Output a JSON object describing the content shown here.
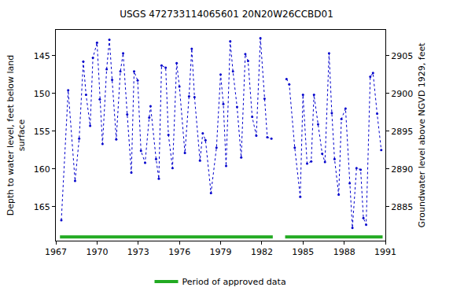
{
  "chart_data": {
    "type": "line",
    "title": "USGS 472733114065601 20N20W26CCBD01",
    "x_label": "",
    "y_label": "Depth to water level, feet below land\nsurface",
    "y2_label": "Groundwater level above NGVD 1929, feet",
    "xlim": [
      1967,
      1991
    ],
    "xticks": [
      1967,
      1970,
      1973,
      1976,
      1979,
      1982,
      1985,
      1988,
      1991
    ],
    "ylim": [
      169.5,
      141.6
    ],
    "yticks": [
      145,
      150,
      155,
      160,
      165
    ],
    "y2lim": [
      2880.5,
      2908.4
    ],
    "y2ticks": [
      2885,
      2890,
      2895,
      2900,
      2905
    ],
    "grid": false,
    "legend": "bottom",
    "series": [
      {
        "color": "#0000cc",
        "marker": "circle",
        "line_style": "dot",
        "x": [
          1967.4,
          1967.9,
          1968.4,
          1968.7,
          1969.0,
          1969.2,
          1969.5,
          1969.7,
          1970.0,
          1970.2,
          1970.4,
          1970.7,
          1970.9,
          1971.1,
          1971.4,
          1971.7,
          1971.9,
          1972.2,
          1972.5,
          1972.7,
          1972.96,
          1973.2,
          1973.5,
          1973.8,
          1973.9,
          1974.3,
          1974.5,
          1974.7,
          1975.0,
          1975.2,
          1975.5,
          1975.8,
          1976.0,
          1976.4,
          1976.7,
          1976.9,
          1977.1,
          1977.5,
          1977.7,
          1977.9,
          1978.3,
          1978.7,
          1979.0,
          1979.2,
          1979.4,
          1979.7,
          1979.9,
          1980.2,
          1980.5,
          1980.8,
          1981.0,
          1981.3,
          1981.6,
          1981.9,
          1982.2,
          1982.4,
          1982.7,
          null,
          1983.8,
          1984.0,
          1984.4,
          1984.8,
          1985.0,
          1985.3,
          1985.6,
          1985.8,
          1986.1,
          1986.4,
          1986.6,
          1986.9,
          1987.1,
          1987.3,
          1987.6,
          1987.8,
          1988.1,
          1988.4,
          1988.6,
          1988.9,
          1989.2,
          1989.4,
          1989.6,
          1989.9,
          1990.1,
          1990.4,
          1990.7
        ],
        "values": [
          166.8,
          149.6,
          161.6,
          156,
          145.8,
          150.2,
          154.3,
          145.3,
          143.3,
          150.8,
          156.7,
          146.8,
          142.9,
          148.2,
          156.1,
          147.1,
          144.7,
          152.8,
          160.5,
          147.1,
          148.3,
          157.6,
          159.2,
          153.2,
          151.7,
          158.7,
          161.3,
          146.3,
          146.6,
          155.5,
          159.9,
          146,
          149.1,
          157.9,
          150.4,
          144.1,
          150.5,
          158.9,
          155.3,
          156.2,
          163.2,
          157.2,
          147.5,
          151.4,
          159.6,
          143.1,
          147.1,
          151.8,
          158.5,
          144.8,
          145.7,
          153.1,
          155.6,
          142.7,
          150.7,
          155.8,
          156,
          null,
          148.1,
          148.8,
          157.2,
          163.7,
          150.2,
          159.3,
          159,
          150.2,
          154.1,
          158,
          159.1,
          144.7,
          152.6,
          158.7,
          163.4,
          153.4,
          152,
          161.9,
          167.8,
          159.9,
          160.1,
          166.5,
          167.4,
          147.8,
          147.3,
          152.7,
          157.5
        ]
      },
      {
        "name": "Period of approved data",
        "color": "#22aa22",
        "line_style": "solid",
        "x": [
          1967.3,
          1982.8,
          null,
          1983.7,
          1990.8
        ],
        "values": [
          169,
          169,
          null,
          169,
          169
        ]
      }
    ]
  }
}
